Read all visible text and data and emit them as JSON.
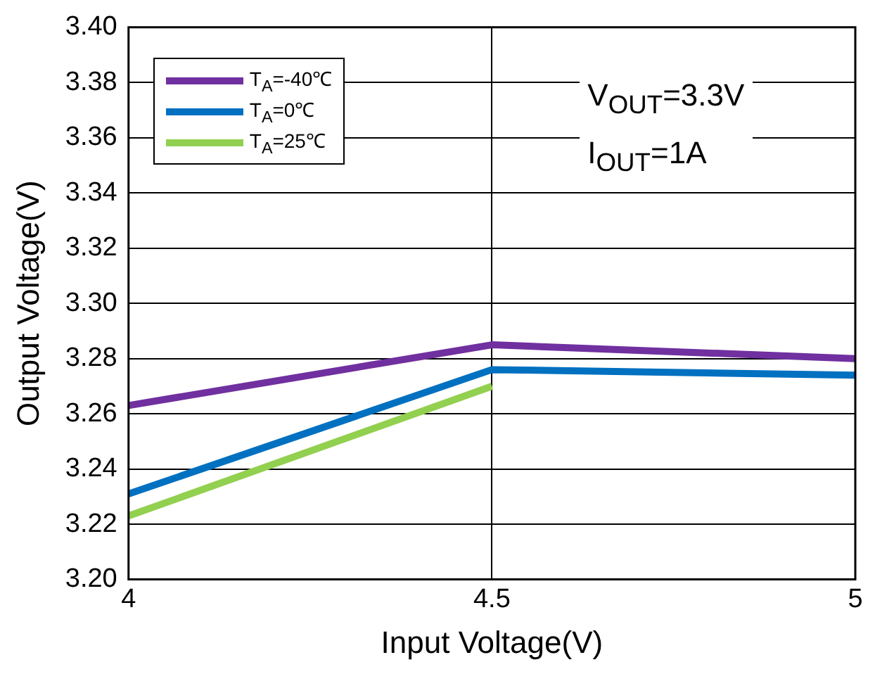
{
  "chart_data": {
    "type": "line",
    "xlabel": "Input Voltage(V)",
    "ylabel": "Output Voltage(V)",
    "x": [
      4,
      4.5,
      5
    ],
    "series": [
      {
        "name": "T$_{A}$=-40℃",
        "color": "#7030a0",
        "values": [
          3.263,
          3.285,
          3.28
        ]
      },
      {
        "name": "T$_{A}$=0℃",
        "color": "#0070c0",
        "values": [
          3.231,
          3.276,
          3.274
        ]
      },
      {
        "name": "T$_{A}$=25℃",
        "color": "#92d050",
        "values": [
          3.223,
          3.27,
          null
        ]
      }
    ],
    "xlim": [
      4,
      5
    ],
    "xticks": [
      4,
      4.5,
      5
    ],
    "ylim": [
      3.2,
      3.4
    ],
    "yticks": [
      {
        "value": 3.2,
        "label": "3.20"
      },
      {
        "value": 3.22,
        "label": "3.22"
      },
      {
        "value": 3.24,
        "label": "3.24"
      },
      {
        "value": 3.26,
        "label": "3.26"
      },
      {
        "value": 3.28,
        "label": "3.28"
      },
      {
        "value": 3.3,
        "label": "3.30"
      },
      {
        "value": 3.32,
        "label": "3.32"
      },
      {
        "value": 3.34,
        "label": "3.34"
      },
      {
        "value": 3.36,
        "label": "3.36"
      },
      {
        "value": 3.38,
        "label": "3.38"
      },
      {
        "value": 3.4,
        "label": "3.40"
      }
    ],
    "grid": true,
    "legend": "top left",
    "marker": "none",
    "line_style": "solid",
    "annotations": [
      "V$_{OUT}$=3.3V",
      "I$_{OUT}$=1A"
    ]
  }
}
